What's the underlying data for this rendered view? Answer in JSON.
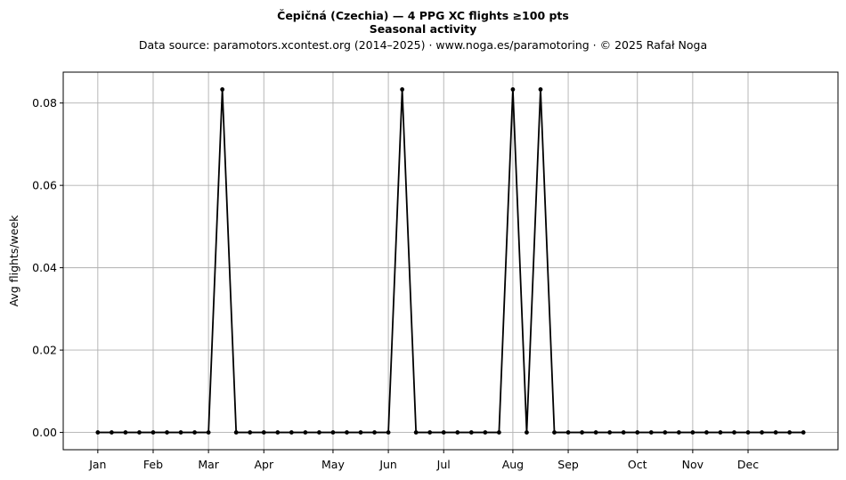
{
  "chart_data": {
    "type": "line",
    "title": "Čepičná (Czechia)  —  4 PPG XC flights ≥100 pts",
    "subtitle": "Seasonal activity",
    "source": "Data source: paramotors.xcontest.org (2014–2025)  ·  www.noga.es/paramotoring  ·  © 2025 Rafał Noga",
    "xlabel": "",
    "ylabel": "Avg flights/week",
    "grid": true,
    "line_color": "#000000",
    "grid_color": "#b0b0b0",
    "x_unit": "week",
    "xlim": [
      -2.5,
      53.5
    ],
    "ylim": [
      -0.0042,
      0.0875
    ],
    "x_ticks": [
      {
        "label": "Jan",
        "week": 0
      },
      {
        "label": "Feb",
        "week": 4
      },
      {
        "label": "Mar",
        "week": 8
      },
      {
        "label": "Apr",
        "week": 12
      },
      {
        "label": "May",
        "week": 17
      },
      {
        "label": "Jun",
        "week": 21
      },
      {
        "label": "Jul",
        "week": 25
      },
      {
        "label": "Aug",
        "week": 30
      },
      {
        "label": "Sep",
        "week": 34
      },
      {
        "label": "Oct",
        "week": 39
      },
      {
        "label": "Nov",
        "week": 43
      },
      {
        "label": "Dec",
        "week": 47
      }
    ],
    "y_ticks": [
      0.0,
      0.02,
      0.04,
      0.06,
      0.08
    ],
    "y_tick_labels": [
      "0.00",
      "0.02",
      "0.04",
      "0.06",
      "0.08"
    ],
    "x": [
      0,
      1,
      2,
      3,
      4,
      5,
      6,
      7,
      8,
      9,
      10,
      11,
      12,
      13,
      14,
      15,
      16,
      17,
      18,
      19,
      20,
      21,
      22,
      23,
      24,
      25,
      26,
      27,
      28,
      29,
      30,
      31,
      32,
      33,
      34,
      35,
      36,
      37,
      38,
      39,
      40,
      41,
      42,
      43,
      44,
      45,
      46,
      47,
      48,
      49,
      50,
      51
    ],
    "values": [
      0,
      0,
      0,
      0,
      0,
      0,
      0,
      0,
      0,
      0.0833,
      0,
      0,
      0,
      0,
      0,
      0,
      0,
      0,
      0,
      0,
      0,
      0,
      0.0833,
      0,
      0,
      0,
      0,
      0,
      0,
      0,
      0.0833,
      0,
      0.0833,
      0,
      0,
      0,
      0,
      0,
      0,
      0,
      0,
      0,
      0,
      0,
      0,
      0,
      0,
      0,
      0,
      0,
      0,
      0
    ]
  }
}
